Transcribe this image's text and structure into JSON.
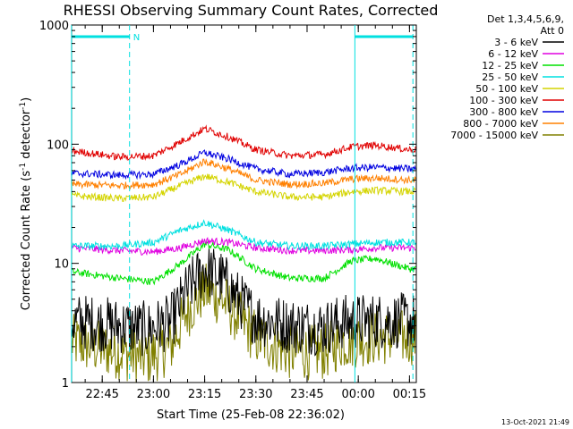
{
  "chart_data": {
    "type": "line",
    "title": "RHESSI Observing Summary Count Rates, Corrected",
    "xlabel": "Start Time (25-Feb-08 22:36:02)",
    "ylabel_parts": [
      "Corrected Count Rate (s",
      "-1",
      " detector",
      "-1",
      ")"
    ],
    "y_scale": "log",
    "ylim": [
      1,
      1000
    ],
    "xlim": [
      "22:36:02",
      "00:17:00"
    ],
    "x_ticks": [
      "22:45",
      "23:00",
      "23:15",
      "23:30",
      "23:45",
      "00:00",
      "00:15"
    ],
    "y_ticks": [
      "1",
      "10",
      "100",
      "1000"
    ],
    "legend_header": [
      "Det 1,3,4,5,6,9,",
      "Att 0"
    ],
    "legend_position": "right",
    "night_marker_label": "N",
    "series": [
      {
        "name": "3 - 6 keV",
        "color": "#000000",
        "x": [
          "22:36",
          "22:50",
          "22:58",
          "23:05",
          "23:10",
          "23:15",
          "23:20",
          "23:25",
          "23:30",
          "23:40",
          "23:50",
          "23:55",
          "00:05",
          "00:15"
        ],
        "values": [
          3.3,
          3.0,
          2.8,
          3.2,
          6.0,
          9.0,
          7.5,
          5.0,
          3.5,
          3.0,
          2.9,
          3.2,
          3.3,
          3.3
        ]
      },
      {
        "name": "6 - 12 keV",
        "color": "#e000e0",
        "x": [
          "22:36",
          "22:50",
          "23:00",
          "23:08",
          "23:15",
          "23:22",
          "23:30",
          "23:40",
          "23:50",
          "23:58",
          "00:05",
          "00:15"
        ],
        "values": [
          13.5,
          12.8,
          12.5,
          13.5,
          15.5,
          15.0,
          13.5,
          12.8,
          12.8,
          13.0,
          13.5,
          13.5
        ]
      },
      {
        "name": "12 - 25 keV",
        "color": "#00e000",
        "x": [
          "22:36",
          "22:50",
          "23:00",
          "23:08",
          "23:15",
          "23:22",
          "23:30",
          "23:40",
          "23:50",
          "23:58",
          "00:05",
          "00:15"
        ],
        "values": [
          8.5,
          7.5,
          7.0,
          10.0,
          14.5,
          13.0,
          9.0,
          7.5,
          7.5,
          10.5,
          11.0,
          9.0
        ]
      },
      {
        "name": "25 - 50 keV",
        "color": "#00e0e0",
        "x": [
          "22:36",
          "22:50",
          "23:00",
          "23:08",
          "23:15",
          "23:22",
          "23:30",
          "23:40",
          "23:50",
          "23:58",
          "00:05",
          "00:15"
        ],
        "values": [
          14.0,
          14.0,
          15.0,
          19.0,
          22.0,
          19.0,
          15.0,
          14.0,
          14.0,
          14.5,
          15.0,
          15.0
        ]
      },
      {
        "name": "50 - 100 keV",
        "color": "#d4d400",
        "x": [
          "22:36",
          "22:50",
          "23:00",
          "23:08",
          "23:15",
          "23:22",
          "23:30",
          "23:40",
          "23:50",
          "23:58",
          "00:05",
          "00:15"
        ],
        "values": [
          37,
          35,
          36,
          45,
          54,
          48,
          40,
          36,
          36,
          40,
          41,
          40
        ]
      },
      {
        "name": "100 - 300 keV",
        "color": "#e00000",
        "x": [
          "22:36",
          "22:50",
          "23:00",
          "23:08",
          "23:15",
          "23:22",
          "23:30",
          "23:40",
          "23:50",
          "23:58",
          "00:05",
          "00:15"
        ],
        "values": [
          88,
          78,
          80,
          105,
          135,
          115,
          90,
          80,
          82,
          95,
          98,
          90
        ]
      },
      {
        "name": "300 - 800 keV",
        "color": "#0000e0",
        "x": [
          "22:36",
          "22:50",
          "23:00",
          "23:08",
          "23:15",
          "23:22",
          "23:30",
          "23:40",
          "23:50",
          "23:58",
          "00:05",
          "00:15"
        ],
        "values": [
          57,
          55,
          56,
          68,
          85,
          75,
          62,
          56,
          58,
          63,
          64,
          62
        ]
      },
      {
        "name": "800 - 7000 keV",
        "color": "#ff8000",
        "x": [
          "22:36",
          "22:50",
          "23:00",
          "23:08",
          "23:15",
          "23:22",
          "23:30",
          "23:40",
          "23:50",
          "23:58",
          "00:05",
          "00:15"
        ],
        "values": [
          46,
          45,
          46,
          56,
          72,
          62,
          50,
          46,
          47,
          51,
          52,
          50
        ]
      },
      {
        "name": "7000 - 15000 keV",
        "color": "#808000",
        "x": [
          "22:36",
          "22:50",
          "22:58",
          "23:05",
          "23:10",
          "23:15",
          "23:20",
          "23:25",
          "23:30",
          "23:40",
          "23:50",
          "23:55",
          "00:05",
          "00:15"
        ],
        "values": [
          2.2,
          1.8,
          1.6,
          2.0,
          4.0,
          6.0,
          5.0,
          3.5,
          2.4,
          1.8,
          1.8,
          2.2,
          2.4,
          2.4
        ]
      }
    ],
    "night_intervals": [
      [
        "22:36",
        "22:53"
      ],
      [
        "23:59",
        "00:16"
      ]
    ],
    "axis_color": "#000000",
    "night_color": "#00e0e0"
  },
  "footer": {
    "timestamp": "13-Oct-2021 21:49"
  }
}
